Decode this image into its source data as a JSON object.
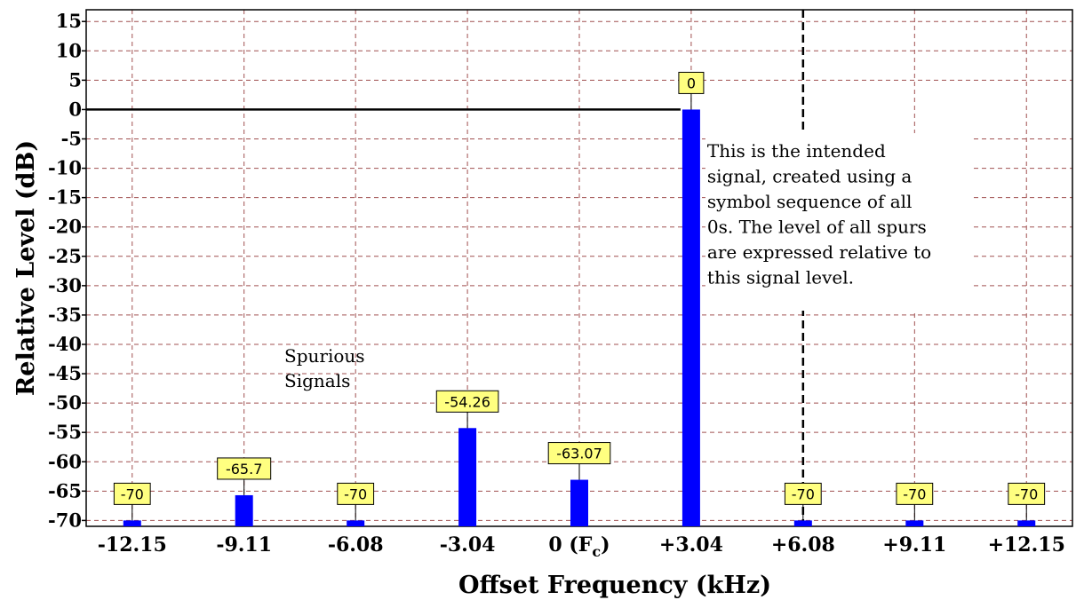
{
  "chart_data": {
    "type": "bar",
    "title": "",
    "xlabel": "Offset Frequency (kHz)",
    "ylabel": "Relative Level (dB)",
    "ylim": [
      -71,
      17
    ],
    "yticks": [
      15,
      10,
      5,
      0,
      -5,
      -10,
      -15,
      -20,
      -25,
      -30,
      -35,
      -40,
      -45,
      -50,
      -55,
      -60,
      -65,
      -70
    ],
    "ytick_labels": [
      "15",
      "10",
      "5",
      "0",
      "-5",
      "-10",
      "-15",
      "-20",
      "-25",
      "-30",
      "-35",
      "-40",
      "-45",
      "-50",
      "-55",
      "-60",
      "-65",
      "-70"
    ],
    "x_numeric": [
      -12.15,
      -9.11,
      -6.08,
      -3.04,
      0,
      3.04,
      6.08,
      9.11,
      12.15
    ],
    "categories": [
      "-12.15",
      "-9.11",
      "-6.08",
      "-3.04",
      "0 (F",
      "+3.04",
      "+6.08",
      "+9.11",
      "+12.15"
    ],
    "category_subscript": [
      "",
      "",
      "",
      "",
      "c",
      "",
      "",
      "",
      ""
    ],
    "category_suffix": [
      "",
      "",
      "",
      "",
      ")",
      "",
      "",
      "",
      ""
    ],
    "values": [
      -70,
      -65.7,
      -70,
      -54.26,
      -63.07,
      0,
      -70,
      -70,
      -70
    ],
    "data_labels": [
      "-70",
      "-65.7",
      "-70",
      "-54.26",
      "-63.07",
      "0",
      "-70",
      "-70",
      "-70"
    ],
    "grid": true,
    "reference_line_y": 0,
    "annotations": [
      {
        "lines": [
          "This is the intended",
          "signal, created using a",
          "symbol sequence of all",
          "0s. The level of all spurs",
          "are expressed relative to",
          "this signal level."
        ]
      },
      {
        "lines": [
          "Spurious",
          "Signals"
        ]
      }
    ],
    "colors": {
      "bar": "#0000ff",
      "label_fill": "#ffff80",
      "grid": "#a05050",
      "axis": "#000000"
    }
  }
}
